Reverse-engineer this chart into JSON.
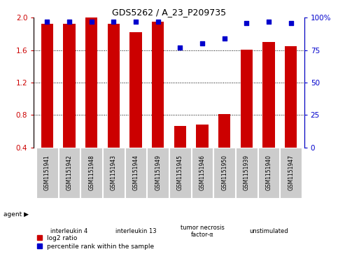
{
  "title": "GDS5262 / A_23_P209735",
  "samples": [
    "GSM1151941",
    "GSM1151942",
    "GSM1151948",
    "GSM1151943",
    "GSM1151944",
    "GSM1151949",
    "GSM1151945",
    "GSM1151946",
    "GSM1151950",
    "GSM1151939",
    "GSM1151940",
    "GSM1151947"
  ],
  "log2_ratio": [
    1.93,
    1.93,
    2.0,
    1.93,
    1.82,
    1.95,
    0.66,
    0.68,
    0.81,
    1.61,
    1.7,
    1.65
  ],
  "percentile": [
    97,
    97,
    97,
    97,
    97,
    97,
    77,
    80,
    84,
    96,
    97,
    96
  ],
  "bar_bottom": 0.4,
  "ylim_left": [
    0.4,
    2.0
  ],
  "ylim_right": [
    0,
    100
  ],
  "yticks_left": [
    0.4,
    0.8,
    1.2,
    1.6,
    2.0
  ],
  "yticks_right": [
    0,
    25,
    50,
    75,
    100
  ],
  "bar_color": "#cc0000",
  "dot_color": "#0000cc",
  "agent_groups": [
    {
      "label": "interleukin 4",
      "start": 0,
      "end": 3,
      "color": "#ccffcc"
    },
    {
      "label": "interleukin 13",
      "start": 3,
      "end": 6,
      "color": "#ccffcc"
    },
    {
      "label": "tumor necrosis\nfactor-α",
      "start": 6,
      "end": 9,
      "color": "#ccffcc"
    },
    {
      "label": "unstimulated",
      "start": 9,
      "end": 12,
      "color": "#55bb55"
    }
  ],
  "legend_items": [
    {
      "label": "log2 ratio",
      "color": "#cc0000"
    },
    {
      "label": "percentile rank within the sample",
      "color": "#0000cc"
    }
  ],
  "agent_label": "agent",
  "tick_label_color_left": "#cc0000",
  "tick_label_color_right": "#0000cc",
  "bar_width": 0.55,
  "sample_box_color": "#cccccc",
  "grid_lines": [
    0.8,
    1.2,
    1.6
  ]
}
